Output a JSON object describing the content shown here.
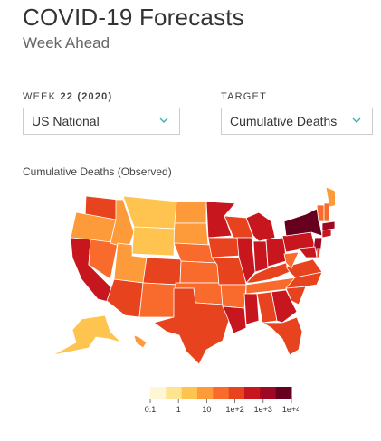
{
  "header": {
    "title": "COVID-19 Forecasts",
    "subtitle": "Week Ahead"
  },
  "controls": {
    "week_label": "WEEK",
    "week_value": "22 (2020)",
    "region_value": "US National",
    "target_label": "TARGET",
    "target_value": "Cumulative Deaths"
  },
  "map": {
    "title": "Cumulative Deaths (Observed)",
    "legend_ticks": [
      "0.1",
      "1",
      "10",
      "1e+2",
      "1e+3",
      "1e+4"
    ],
    "legend_colors": [
      "#fff6d5",
      "#fee391",
      "#fec44f",
      "#fd9a3a",
      "#f86b2c",
      "#e8431f",
      "#c8161e",
      "#9e0825",
      "#67001f"
    ]
  }
}
